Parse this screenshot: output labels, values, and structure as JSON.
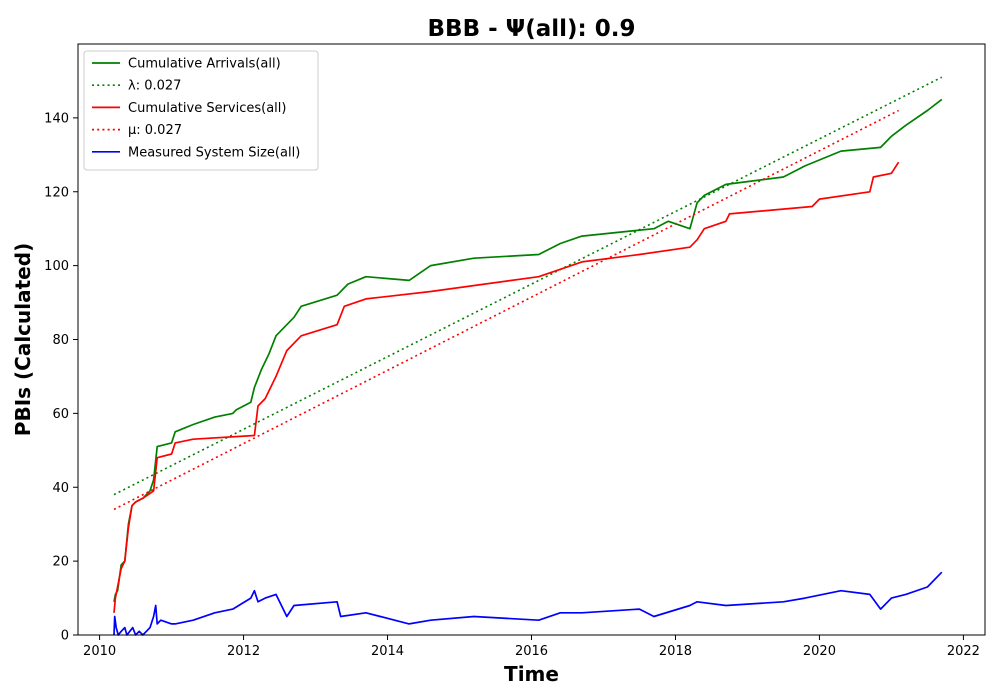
{
  "chart_data": {
    "type": "line",
    "title": "BBB -  Ψ(all): 0.9",
    "xlabel": "Time",
    "ylabel": "PBIs (Calculated)",
    "xlim": [
      2009.7,
      2022.3
    ],
    "ylim": [
      0,
      160
    ],
    "xticks": [
      2010,
      2012,
      2014,
      2016,
      2018,
      2020,
      2022
    ],
    "yticks": [
      0,
      20,
      40,
      60,
      80,
      100,
      120,
      140
    ],
    "grid": false,
    "legend_position": "top-left",
    "series": [
      {
        "name": "Cumulative Arrivals(all)",
        "color": "#008000",
        "style": "solid",
        "x": [
          2010.2,
          2010.22,
          2010.25,
          2010.3,
          2010.35,
          2010.4,
          2010.45,
          2010.5,
          2010.6,
          2010.7,
          2010.75,
          2010.8,
          2011.0,
          2011.05,
          2011.3,
          2011.6,
          2011.85,
          2011.9,
          2012.1,
          2012.15,
          2012.25,
          2012.35,
          2012.45,
          2012.6,
          2012.7,
          2012.8,
          2013.3,
          2013.45,
          2013.7,
          2014.3,
          2014.6,
          2015.2,
          2016.1,
          2016.4,
          2016.7,
          2017.2,
          2017.7,
          2017.9,
          2018.2,
          2018.3,
          2018.4,
          2018.7,
          2019.5,
          2019.8,
          2020.3,
          2020.85,
          2021.0,
          2021.2,
          2021.5,
          2021.7
        ],
        "y": [
          9,
          11,
          12,
          19,
          20,
          30,
          35,
          36,
          37,
          39,
          42,
          51,
          52,
          55,
          57,
          59,
          60,
          61,
          63,
          67,
          72,
          76,
          81,
          84,
          86,
          89,
          92,
          95,
          97,
          96,
          100,
          102,
          103,
          106,
          108,
          109,
          110,
          112,
          110,
          117,
          119,
          122,
          124,
          127,
          131,
          132,
          135,
          138,
          142,
          145
        ]
      },
      {
        "name": "λ: 0.027",
        "color": "#008000",
        "style": "dotted",
        "x": [
          2010.2,
          2021.7
        ],
        "y": [
          38,
          151
        ]
      },
      {
        "name": "Cumulative Services(all)",
        "color": "#ff0000",
        "style": "solid",
        "x": [
          2010.2,
          2010.22,
          2010.3,
          2010.35,
          2010.4,
          2010.45,
          2010.5,
          2010.6,
          2010.75,
          2010.8,
          2011.0,
          2011.05,
          2011.3,
          2012.15,
          2012.2,
          2012.3,
          2012.45,
          2012.6,
          2012.8,
          2013.3,
          2013.4,
          2013.7,
          2014.6,
          2016.1,
          2016.7,
          2017.5,
          2018.2,
          2018.3,
          2018.4,
          2018.7,
          2018.75,
          2019.9,
          2020.0,
          2020.7,
          2020.75,
          2021.0,
          2021.1
        ],
        "y": [
          6,
          10,
          18,
          20,
          29,
          35,
          36,
          37,
          39,
          48,
          49,
          52,
          53,
          54,
          62,
          64,
          70,
          77,
          81,
          84,
          89,
          91,
          93,
          97,
          101,
          103,
          105,
          107,
          110,
          112,
          114,
          116,
          118,
          120,
          124,
          125,
          128
        ]
      },
      {
        "name": "μ: 0.027",
        "color": "#ff0000",
        "style": "dotted",
        "x": [
          2010.2,
          2021.1
        ],
        "y": [
          34,
          142
        ]
      },
      {
        "name": "Measured System Size(all)",
        "color": "#0000ff",
        "style": "solid",
        "x": [
          2010.2,
          2010.21,
          2010.23,
          2010.26,
          2010.3,
          2010.35,
          2010.38,
          2010.42,
          2010.46,
          2010.5,
          2010.55,
          2010.6,
          2010.65,
          2010.7,
          2010.75,
          2010.78,
          2010.8,
          2010.85,
          2011.0,
          2011.05,
          2011.3,
          2011.6,
          2011.85,
          2012.1,
          2012.15,
          2012.2,
          2012.3,
          2012.45,
          2012.6,
          2012.7,
          2013.3,
          2013.35,
          2013.7,
          2014.3,
          2014.6,
          2015.2,
          2016.1,
          2016.4,
          2016.7,
          2017.5,
          2017.7,
          2018.2,
          2018.3,
          2018.7,
          2019.5,
          2019.8,
          2020.3,
          2020.7,
          2020.85,
          2021.0,
          2021.2,
          2021.5,
          2021.7
        ],
        "y": [
          0,
          5,
          2,
          0,
          1,
          2,
          0,
          1,
          2,
          0,
          1,
          0,
          1,
          2,
          5,
          8,
          3,
          4,
          3,
          3,
          4,
          6,
          7,
          10,
          12,
          9,
          10,
          11,
          5,
          8,
          9,
          5,
          6,
          3,
          4,
          5,
          4,
          6,
          6,
          7,
          5,
          8,
          9,
          8,
          9,
          10,
          12,
          11,
          7,
          10,
          11,
          13,
          17
        ]
      }
    ]
  }
}
